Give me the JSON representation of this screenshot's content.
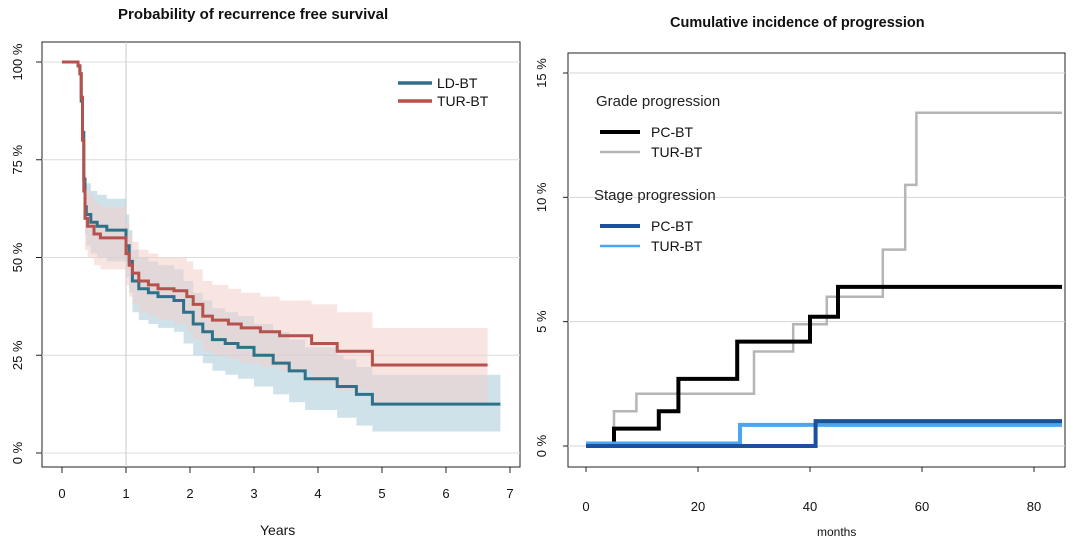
{
  "chart_data": [
    {
      "type": "line",
      "subtype": "kaplan-meier",
      "title": "Probability of recurrence free survival",
      "xlabel": "Years",
      "ylabel": "",
      "xlim": [
        0,
        7
      ],
      "ylim": [
        0,
        1
      ],
      "x_ticks": [
        0,
        1,
        2,
        3,
        4,
        5,
        6,
        7
      ],
      "y_ticks": [
        0,
        0.25,
        0.5,
        0.75,
        1.0
      ],
      "y_tick_labels": [
        "0 %",
        "25 %",
        "50 %",
        "75 %",
        "100 %"
      ],
      "vertical_reference": 1,
      "legend": "top-right",
      "series": [
        {
          "name": "LD-BT",
          "color": "#2e7189",
          "band_color": "#a8cad9",
          "x": [
            0,
            0.25,
            0.28,
            0.3,
            0.32,
            0.34,
            0.36,
            0.38,
            0.45,
            0.55,
            0.7,
            0.9,
            1.0,
            1.05,
            1.1,
            1.2,
            1.35,
            1.5,
            1.75,
            1.9,
            2.05,
            2.2,
            2.35,
            2.55,
            2.75,
            3.0,
            3.3,
            3.55,
            3.8,
            4.3,
            4.4,
            4.6,
            4.85,
            6.85
          ],
          "y": [
            1.0,
            0.99,
            0.97,
            0.9,
            0.82,
            0.7,
            0.63,
            0.61,
            0.59,
            0.58,
            0.57,
            0.57,
            0.53,
            0.49,
            0.44,
            0.42,
            0.41,
            0.4,
            0.39,
            0.36,
            0.33,
            0.31,
            0.29,
            0.28,
            0.27,
            0.25,
            0.23,
            0.21,
            0.19,
            0.17,
            0.17,
            0.15,
            0.125,
            0.125
          ],
          "lower": [
            1.0,
            0.98,
            0.95,
            0.86,
            0.76,
            0.63,
            0.56,
            0.53,
            0.51,
            0.5,
            0.49,
            0.49,
            0.45,
            0.41,
            0.36,
            0.34,
            0.33,
            0.32,
            0.31,
            0.28,
            0.25,
            0.23,
            0.21,
            0.2,
            0.19,
            0.17,
            0.15,
            0.13,
            0.11,
            0.09,
            0.09,
            0.07,
            0.055,
            0.055
          ],
          "upper": [
            1.0,
            1.0,
            0.99,
            0.94,
            0.88,
            0.77,
            0.71,
            0.69,
            0.67,
            0.66,
            0.65,
            0.65,
            0.61,
            0.57,
            0.52,
            0.5,
            0.49,
            0.48,
            0.47,
            0.44,
            0.41,
            0.39,
            0.37,
            0.36,
            0.35,
            0.33,
            0.31,
            0.29,
            0.27,
            0.25,
            0.24,
            0.22,
            0.2,
            0.2
          ]
        },
        {
          "name": "TUR-BT",
          "color": "#b5524d",
          "band_color": "#f2cfcb",
          "x": [
            0,
            0.25,
            0.28,
            0.3,
            0.32,
            0.34,
            0.36,
            0.4,
            0.5,
            0.6,
            0.8,
            1.0,
            1.05,
            1.1,
            1.2,
            1.35,
            1.5,
            1.75,
            1.95,
            2.05,
            2.2,
            2.35,
            2.6,
            2.8,
            3.1,
            3.4,
            3.9,
            4.3,
            4.85,
            6.65
          ],
          "y": [
            1.0,
            0.99,
            0.97,
            0.91,
            0.8,
            0.67,
            0.6,
            0.58,
            0.56,
            0.55,
            0.55,
            0.51,
            0.48,
            0.46,
            0.44,
            0.43,
            0.42,
            0.415,
            0.4,
            0.38,
            0.35,
            0.34,
            0.33,
            0.32,
            0.31,
            0.3,
            0.28,
            0.26,
            0.225,
            0.225
          ],
          "lower": [
            1.0,
            0.98,
            0.95,
            0.87,
            0.74,
            0.6,
            0.52,
            0.5,
            0.48,
            0.47,
            0.47,
            0.43,
            0.4,
            0.38,
            0.36,
            0.35,
            0.34,
            0.33,
            0.31,
            0.29,
            0.26,
            0.25,
            0.24,
            0.23,
            0.22,
            0.21,
            0.18,
            0.16,
            0.13,
            0.13
          ],
          "upper": [
            1.0,
            1.0,
            0.99,
            0.95,
            0.86,
            0.74,
            0.68,
            0.66,
            0.64,
            0.63,
            0.63,
            0.59,
            0.56,
            0.54,
            0.52,
            0.51,
            0.5,
            0.5,
            0.49,
            0.47,
            0.44,
            0.43,
            0.42,
            0.41,
            0.4,
            0.39,
            0.38,
            0.36,
            0.32,
            0.32
          ]
        }
      ]
    },
    {
      "type": "line",
      "subtype": "cumulative-incidence-step",
      "title": "Cumulative incidence of progression",
      "xlabel": "months",
      "ylabel": "",
      "xlim": [
        -2,
        87
      ],
      "ylim": [
        0,
        15
      ],
      "x_ticks": [
        0,
        20,
        40,
        60,
        80
      ],
      "y_ticks": [
        0,
        5,
        10,
        15
      ],
      "y_tick_labels": [
        "0 %",
        "5 %",
        "10 %",
        "15 %"
      ],
      "grid": "horizontal",
      "legend": "top-left",
      "legend_groups": [
        {
          "title": "Grade progression",
          "entries": [
            "PC-BT",
            "TUR-BT"
          ]
        },
        {
          "title": "Stage progression",
          "entries": [
            "PC-BT",
            "TUR-BT"
          ]
        }
      ],
      "series": [
        {
          "group": "Grade progression",
          "name": "PC-BT",
          "color": "#000000",
          "width": 4,
          "x": [
            0,
            5,
            13,
            16.5,
            22,
            27,
            40,
            41,
            45,
            50,
            85
          ],
          "y": [
            0,
            0.7,
            1.4,
            2.7,
            2.7,
            4.2,
            5.2,
            5.2,
            6.4,
            6.4,
            6.4
          ]
        },
        {
          "group": "Grade progression",
          "name": "TUR-BT",
          "color": "#b5b5b5",
          "width": 2.5,
          "x": [
            0,
            5,
            9,
            17,
            22,
            30,
            37,
            41,
            43,
            53,
            57,
            59,
            85
          ],
          "y": [
            0,
            1.4,
            2.1,
            2.1,
            2.1,
            3.8,
            4.9,
            4.9,
            6.0,
            7.9,
            10.5,
            13.4,
            13.4
          ]
        },
        {
          "group": "Stage progression",
          "name": "PC-BT",
          "color": "#1d4fa0",
          "width": 4,
          "x": [
            0,
            41,
            85
          ],
          "y": [
            0,
            1.0,
            1.0
          ]
        },
        {
          "group": "Stage progression",
          "name": "TUR-BT",
          "color": "#4aa6f0",
          "width": 4,
          "x": [
            0,
            27.5,
            41,
            85
          ],
          "y": [
            0.1,
            0.85,
            0.85,
            0.85
          ]
        }
      ]
    }
  ]
}
